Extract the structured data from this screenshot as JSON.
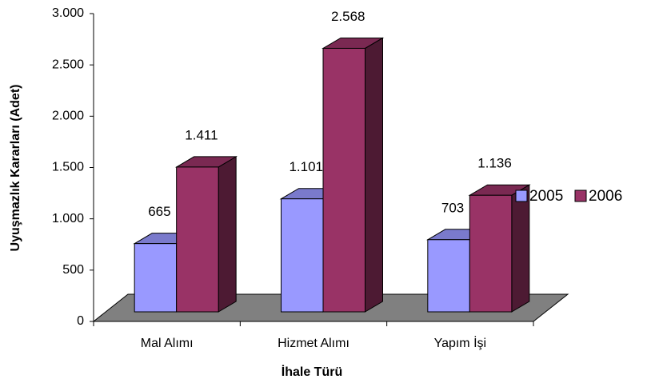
{
  "chart_data": {
    "type": "bar3d",
    "y_label": "Uyuşmazlık Kararları (Adet)",
    "x_label": "İhale Türü",
    "categories": [
      "Mal Alımı",
      "Hizmet Alımı",
      "Yapım İşi"
    ],
    "series": [
      {
        "name": "2005",
        "color": "#9999ff",
        "values": [
          665,
          1101,
          703
        ],
        "value_labels": [
          "665",
          "1.101",
          "703"
        ]
      },
      {
        "name": "2006",
        "color": "#993366",
        "values": [
          1411,
          2568,
          1136
        ],
        "value_labels": [
          "1.411",
          "2.568",
          "1.136"
        ]
      }
    ],
    "ylim": [
      0,
      3000
    ],
    "yticks": [
      0,
      500,
      {
        "value": 1000,
        "label": "1.000"
      },
      {
        "value": 1500,
        "label": "1.500"
      },
      {
        "value": 2000,
        "label": "2.000"
      },
      {
        "value": 2500,
        "label": "2.500"
      },
      {
        "value": 3000,
        "label": "3.000"
      }
    ],
    "legend": "right"
  }
}
